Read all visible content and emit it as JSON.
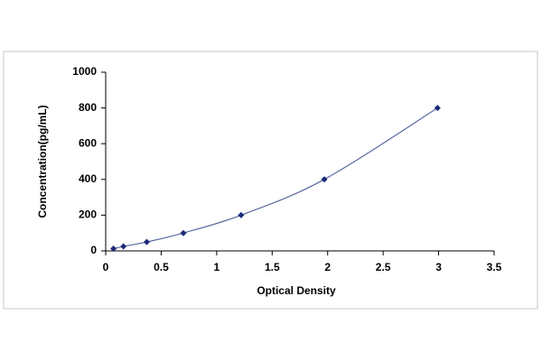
{
  "chart_data": {
    "type": "scatter",
    "fit_line": true,
    "x_label": "Optical Density",
    "y_label": "Concentration(pg/mL)",
    "series": [
      {
        "color": "#1c2a78",
        "line_color": "#5a6aa0",
        "x": [
          0.07,
          0.16,
          0.37,
          0.7,
          1.22,
          1.97,
          2.99
        ],
        "values": [
          12.5,
          25,
          50,
          100,
          200,
          400,
          800
        ]
      }
    ],
    "xlim": [
      0,
      3.5
    ],
    "xticks": [
      0,
      0.5,
      1,
      1.5,
      2,
      2.5,
      3,
      3.5
    ],
    "ylim": [
      0,
      1000
    ],
    "yticks": [
      0,
      200,
      400,
      600,
      800,
      1000
    ]
  }
}
